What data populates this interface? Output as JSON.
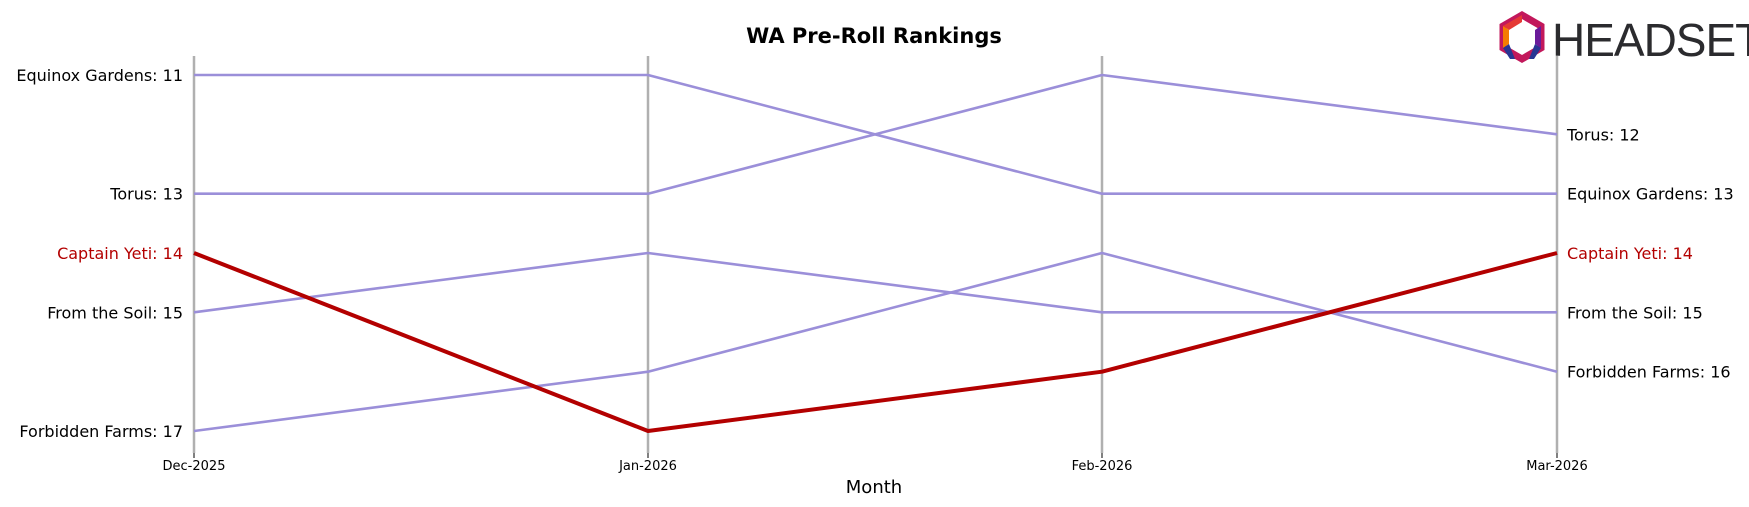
{
  "brand": {
    "logo_text": "HEADSET"
  },
  "colors": {
    "highlight": "#b30000",
    "other": "#9b8fd9",
    "axis": "#b0b0b0"
  },
  "chart_data": {
    "type": "line",
    "title": "WA Pre-Roll Rankings",
    "xlabel": "Month",
    "ylabel": "",
    "categories": [
      "Dec-2025",
      "Jan-2026",
      "Feb-2026",
      "Mar-2026"
    ],
    "y_inverted": true,
    "ylim": [
      11,
      17
    ],
    "grid": false,
    "highlight_series": "Captain Yeti",
    "series": [
      {
        "name": "Equinox Gardens",
        "values": [
          11,
          11,
          13,
          13
        ]
      },
      {
        "name": "Torus",
        "values": [
          13,
          13,
          11,
          12
        ]
      },
      {
        "name": "Captain Yeti",
        "values": [
          14,
          17,
          16,
          14
        ]
      },
      {
        "name": "From the Soil",
        "values": [
          15,
          14,
          15,
          15
        ]
      },
      {
        "name": "Forbidden Farms",
        "values": [
          17,
          16,
          14,
          16
        ]
      }
    ],
    "left_labels": [
      {
        "series": "Equinox Gardens",
        "text": "Equinox Gardens: 11"
      },
      {
        "series": "Torus",
        "text": "Torus: 13"
      },
      {
        "series": "Captain Yeti",
        "text": "Captain Yeti: 14"
      },
      {
        "series": "From the Soil",
        "text": "From the Soil: 15"
      },
      {
        "series": "Forbidden Farms",
        "text": "Forbidden Farms: 17"
      }
    ],
    "right_labels": [
      {
        "series": "Torus",
        "text": "Torus: 12"
      },
      {
        "series": "Equinox Gardens",
        "text": "Equinox Gardens: 13"
      },
      {
        "series": "Captain Yeti",
        "text": "Captain Yeti: 14"
      },
      {
        "series": "From the Soil",
        "text": "From the Soil: 15"
      },
      {
        "series": "Forbidden Farms",
        "text": "Forbidden Farms: 16"
      }
    ]
  }
}
